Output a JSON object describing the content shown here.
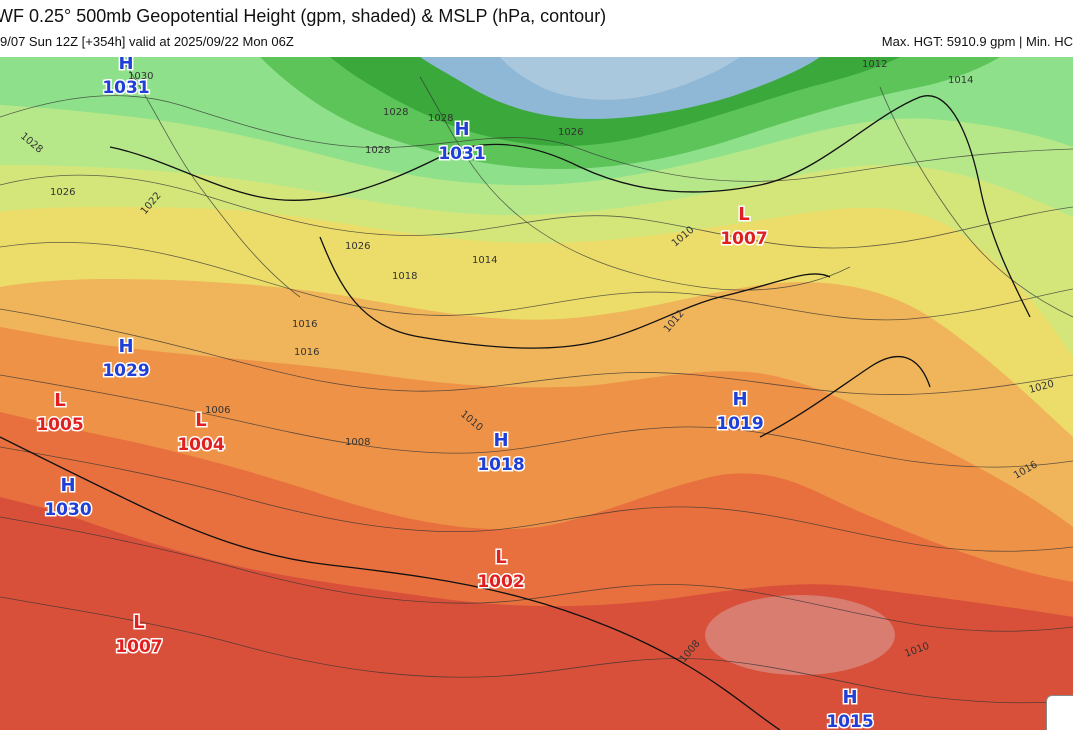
{
  "header": {
    "title": "WF 0.25° 500mb Geopotential Height (gpm, shaded) & MSLP (hPa, contour)",
    "subtitle": "9/07 Sun 12Z [+354h] valid at 2025/09/22 Mon 06Z",
    "maxmin": "Max. HGT: 5910.9 gpm | Min. HC"
  },
  "colors": {
    "high": "#1f3fd6",
    "low": "#e02020",
    "band_blue_light": "#a9c8de",
    "band_blue": "#8eb8d6",
    "band_darkgreen": "#3aa83a",
    "band_green": "#5dc45a",
    "band_lightgreen": "#8ee08a",
    "band_palegreen": "#b6e88a",
    "band_yellowgreen": "#d4e67a",
    "band_yellow": "#ecdd6a",
    "band_orange_light": "#f0b45a",
    "band_orange": "#ee9248",
    "band_orangered": "#e8703e",
    "band_red": "#d8503a",
    "band_pink": "#d98880"
  },
  "pressure_systems": [
    {
      "type": "H",
      "value": "1031"
    },
    {
      "type": "H",
      "value": "1031"
    },
    {
      "type": "L",
      "value": "1007"
    },
    {
      "type": "H",
      "value": "1029"
    },
    {
      "type": "L",
      "value": "1005"
    },
    {
      "type": "L",
      "value": "1004"
    },
    {
      "type": "H",
      "value": "1019"
    },
    {
      "type": "H",
      "value": "1018"
    },
    {
      "type": "H",
      "value": "1030"
    },
    {
      "type": "L",
      "value": "1002"
    },
    {
      "type": "L",
      "value": "1007"
    },
    {
      "type": "H",
      "value": "1015"
    }
  ],
  "contour_labels": [
    "1030",
    "1028",
    "1028",
    "1026",
    "1022",
    "1028",
    "1026",
    "1028",
    "1026",
    "1012",
    "1014",
    "1016",
    "1018",
    "1014",
    "1010",
    "1012",
    "1016",
    "1006",
    "1008",
    "1010",
    "1020",
    "1016",
    "1010",
    "1008"
  ]
}
